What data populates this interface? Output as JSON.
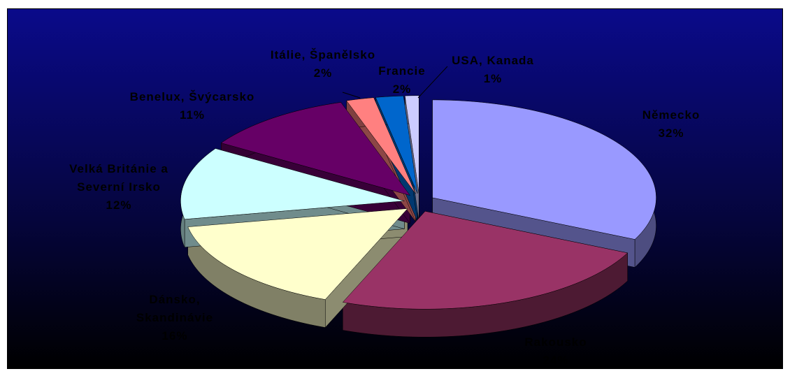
{
  "chart_data": {
    "type": "pie",
    "categories": [
      "Německo",
      "Rakousko",
      "Dánsko, Skandinávie",
      "Velká Británie a Severní Irsko",
      "Benelux, Švýcarsko",
      "Itálie, Španělsko",
      "Francie",
      "USA, Kanada"
    ],
    "values": [
      32,
      24,
      16,
      12,
      11,
      2,
      2,
      1
    ],
    "value_labels": [
      "32%",
      "24%",
      "16%",
      "12%",
      "11%",
      "2%",
      "2%",
      "1%"
    ],
    "colors": [
      "#9999ff",
      "#993366",
      "#ffffcc",
      "#ccffff",
      "#660066",
      "#ff8080",
      "#0066cc",
      "#ccccff"
    ]
  }
}
